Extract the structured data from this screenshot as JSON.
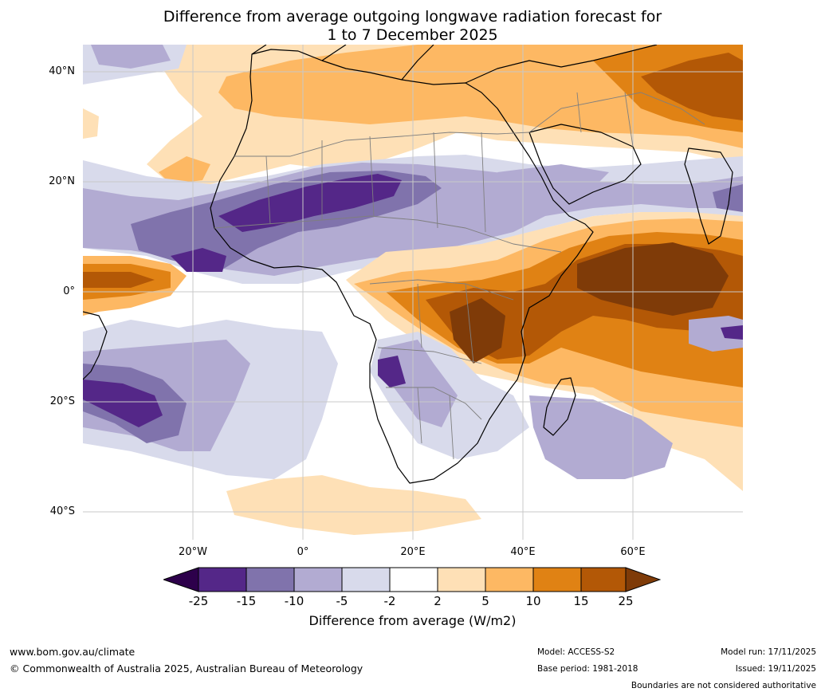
{
  "title": {
    "line1": "Difference from average outgoing longwave radiation forecast for",
    "line2": "1 to 7 December 2025"
  },
  "map": {
    "lat_ticks": [
      "40°N",
      "20°N",
      "0°",
      "20°S",
      "40°S"
    ],
    "lon_ticks": [
      "20°W",
      "0°",
      "20°E",
      "40°E",
      "60°E"
    ],
    "colors": {
      "land_outline": "#000000",
      "borders": "#7f7f7f",
      "grid": "#c8c8c8"
    }
  },
  "colorbar": {
    "ticks": [
      "-25",
      "-15",
      "-10",
      "-5",
      "-2",
      "2",
      "5",
      "10",
      "15",
      "25"
    ],
    "colors": [
      "#2d004b",
      "#542788",
      "#8073ac",
      "#b2abd2",
      "#d8daeb",
      "#ffffff",
      "#fee0b6",
      "#fdb863",
      "#e08214",
      "#b35806",
      "#7f3b08"
    ],
    "label": "Difference from average (W/m2)"
  },
  "footer": {
    "website": "www.bom.gov.au/climate",
    "copyright": "© Commonwealth of Australia 2025, Australian Bureau of Meteorology",
    "model": "Model: ACCESS-S2",
    "base_period": "Base period: 1981-2018",
    "model_run": "Model run: 17/11/2025",
    "issued": "Issued: 19/11/2025",
    "disclaimer": "Boundaries are not considered authoritative"
  }
}
